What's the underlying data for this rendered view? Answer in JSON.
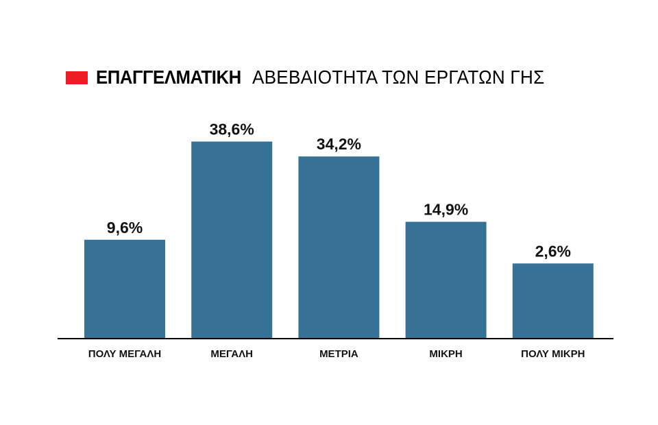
{
  "chart_data": {
    "type": "bar",
    "title_bold": "ΕΠΑΓΓΕΛΜΑΤΙΚΗ",
    "title_rest": "ΑΒΕΒΑΙΟΤΗΤΑ ΤΩΝ ΕΡΓΑΤΩΝ ΓΗΣ",
    "categories": [
      "ΠΟΛΥ ΜΕΓΑΛΗ",
      "ΜΕΓΑΛΗ",
      "ΜΕΤΡΙΑ",
      "ΜΙΚΡΗ",
      "ΠΟΛΥ ΜΙΚΡΗ"
    ],
    "values": [
      9.6,
      38.6,
      34.2,
      14.9,
      2.6
    ],
    "labels": [
      "9,6%",
      "38,6%",
      "34,2%",
      "14,9%",
      "2,6%"
    ],
    "xlabel": "",
    "ylabel": "",
    "grid": false,
    "colors": {
      "bar": "#357296",
      "title_mark": "#ee1c25",
      "axis": "#000000"
    }
  }
}
